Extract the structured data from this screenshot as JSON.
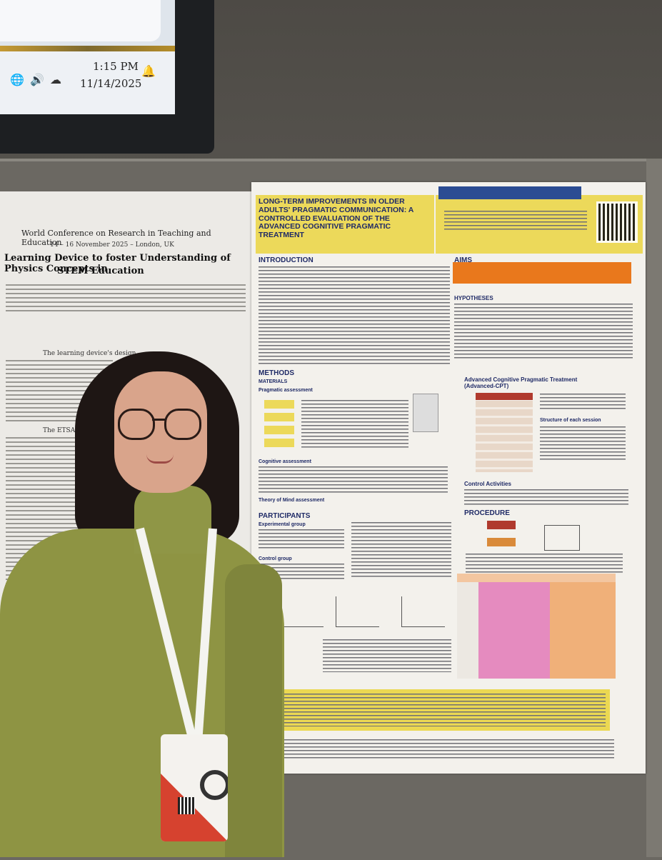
{
  "monitor": {
    "time": "1:15 PM",
    "date": "11/14/2025",
    "tray_icons": [
      "globe-icon",
      "speaker-icon",
      "network-icon",
      "bell-icon"
    ]
  },
  "left_poster": {
    "conference": "World Conference on Research in Teaching and Education",
    "dates": "14 – 16 November 2025 – London, UK",
    "title_line1": "Learning Device to foster Understanding of Physics Concepts in",
    "title_line2": "STEM Education",
    "section1": "The learning device's design",
    "section2": "The ETSA-based learning tentative"
  },
  "right_poster": {
    "title": "LONG-TERM IMPROVEMENTS IN OLDER ADULTS' PRAGMATIC COMMUNICATION: A CONTROLLED EVALUATION OF THE ADVANCED COGNITIVE PRAGMATIC TREATMENT",
    "intro_heading": "INTRODUCTION",
    "aims_heading": "AIMS",
    "hypotheses_heading": "HYPOTHESES",
    "methods_heading": "METHODS",
    "materials_heading": "MATERIALS",
    "pragmatic_assessment": "Pragmatic assessment",
    "cognitive_assessment": "Cognitive assessment",
    "tom_assessment": "Theory of Mind assessment",
    "participants_heading": "PARTICIPANTS",
    "experimental_group": "Experimental group",
    "control_group": "Control group",
    "treatment_heading": "Advanced Cognitive Pragmatic Treatment (Advanced-CPT)",
    "control_activities": "Control Activities",
    "procedure_heading": "PROCEDURE",
    "structure_heading": "Structure of each session"
  },
  "colors": {
    "title_yellow": "#ecd95a",
    "aims_orange": "#e9781c",
    "table_pink": "#e58bbf",
    "table_orange": "#f0b079",
    "sweater": "#8e9443"
  }
}
